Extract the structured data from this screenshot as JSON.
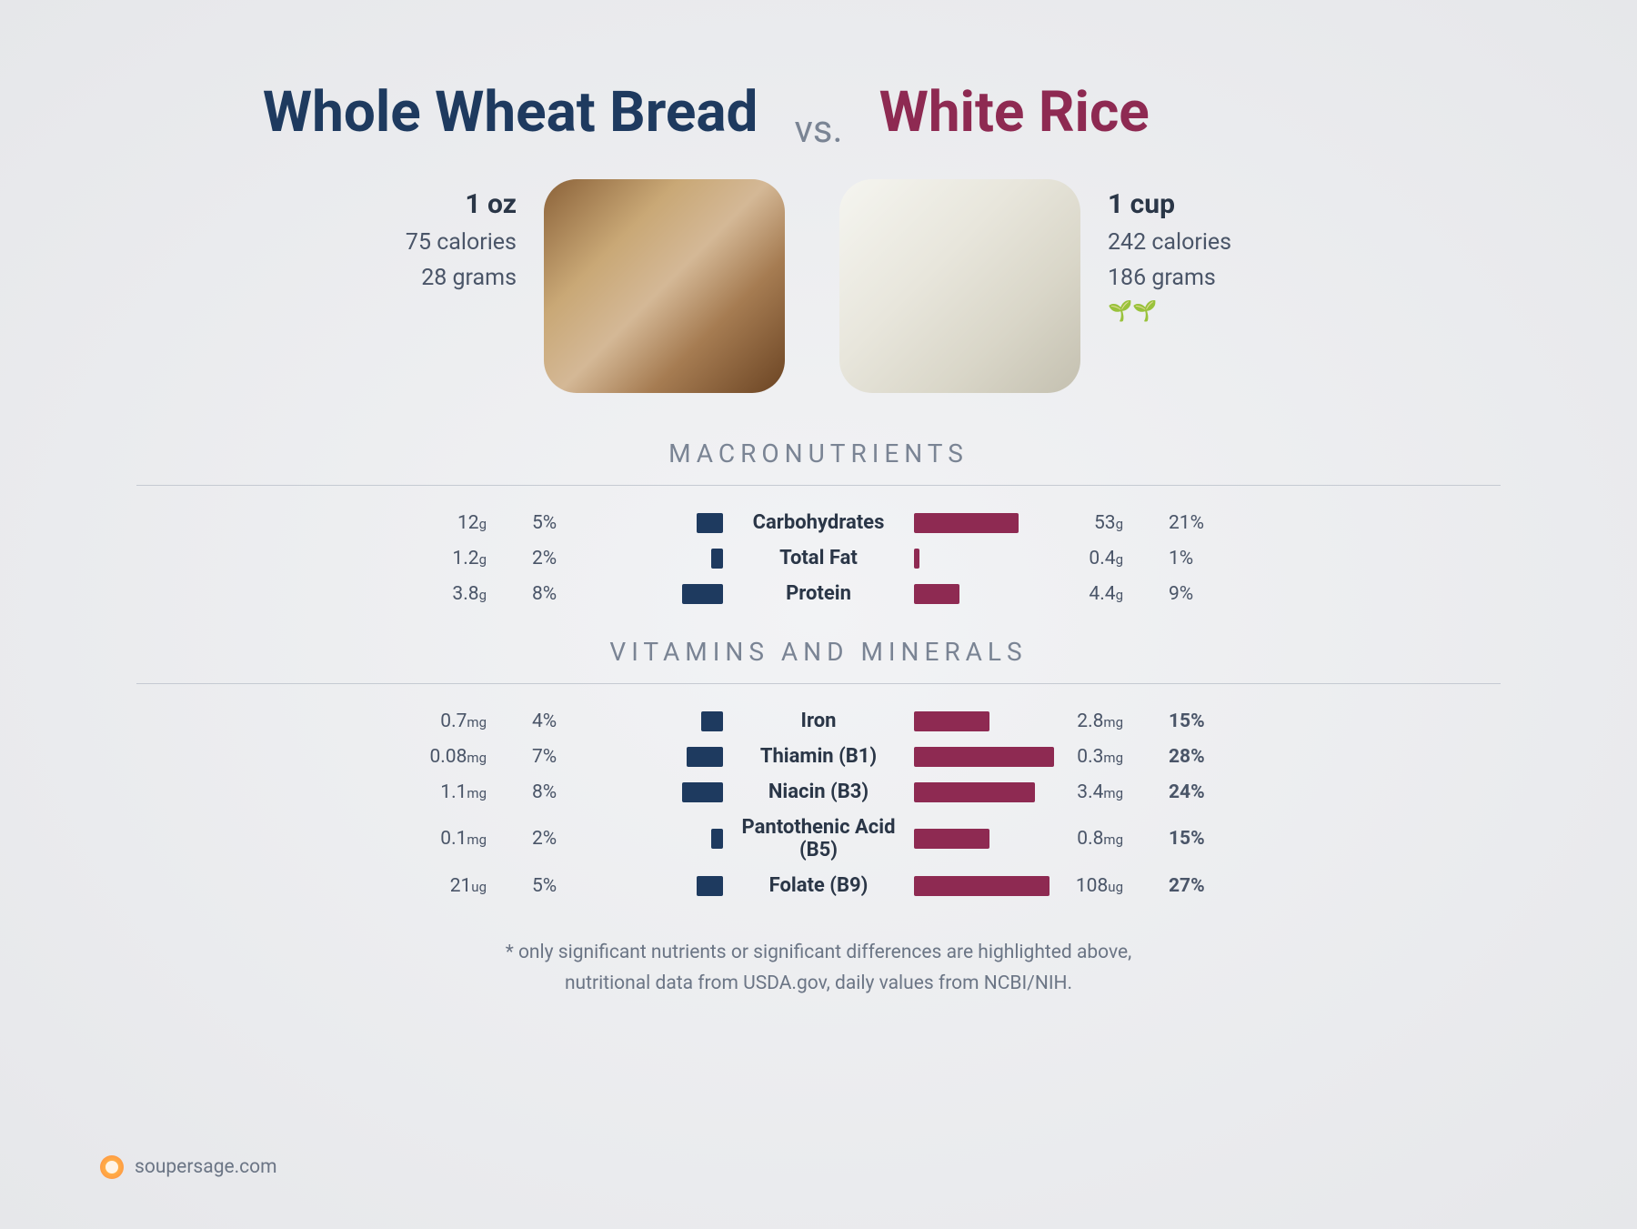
{
  "left": {
    "title": "Whole Wheat Bread",
    "color": "#1e3a5f",
    "serving": "1 oz",
    "calories": "75 calories",
    "grams": "28 grams",
    "leaves": ""
  },
  "right": {
    "title": "White Rice",
    "color": "#8e2a52",
    "serving": "1 cup",
    "calories": "242 calories",
    "grams": "186 grams",
    "leaves": "🌱🌱"
  },
  "vs": "vs.",
  "sections": {
    "macro": "MACRONUTRIENTS",
    "vit": "VITAMINS AND MINERALS"
  },
  "macros": [
    {
      "label": "Carbohydrates",
      "l_amt": "12",
      "l_unit": "g",
      "l_pct": "5%",
      "l_bar": 18,
      "r_bar": 72,
      "r_amt": "53",
      "r_unit": "g",
      "r_pct": "21%",
      "r_bold": false
    },
    {
      "label": "Total Fat",
      "l_amt": "1.2",
      "l_unit": "g",
      "l_pct": "2%",
      "l_bar": 8,
      "r_bar": 4,
      "r_amt": "0.4",
      "r_unit": "g",
      "r_pct": "1%",
      "r_bold": false
    },
    {
      "label": "Protein",
      "l_amt": "3.8",
      "l_unit": "g",
      "l_pct": "8%",
      "l_bar": 28,
      "r_bar": 31,
      "r_amt": "4.4",
      "r_unit": "g",
      "r_pct": "9%",
      "r_bold": false
    }
  ],
  "vitamins": [
    {
      "label": "Iron",
      "l_amt": "0.7",
      "l_unit": "mg",
      "l_pct": "4%",
      "l_bar": 15,
      "r_bar": 52,
      "r_amt": "2.8",
      "r_unit": "mg",
      "r_pct": "15%",
      "r_bold": true
    },
    {
      "label": "Thiamin (B1)",
      "l_amt": "0.08",
      "l_unit": "mg",
      "l_pct": "7%",
      "l_bar": 25,
      "r_bar": 96,
      "r_amt": "0.3",
      "r_unit": "mg",
      "r_pct": "28%",
      "r_bold": true
    },
    {
      "label": "Niacin (B3)",
      "l_amt": "1.1",
      "l_unit": "mg",
      "l_pct": "8%",
      "l_bar": 28,
      "r_bar": 83,
      "r_amt": "3.4",
      "r_unit": "mg",
      "r_pct": "24%",
      "r_bold": true
    },
    {
      "label": "Pantothenic Acid (B5)",
      "l_amt": "0.1",
      "l_unit": "mg",
      "l_pct": "2%",
      "l_bar": 8,
      "r_bar": 52,
      "r_amt": "0.8",
      "r_unit": "mg",
      "r_pct": "15%",
      "r_bold": true
    },
    {
      "label": "Folate (B9)",
      "l_amt": "21",
      "l_unit": "ug",
      "l_pct": "5%",
      "l_bar": 18,
      "r_bar": 93,
      "r_amt": "108",
      "r_unit": "ug",
      "r_pct": "27%",
      "r_bold": true
    }
  ],
  "footnote1": "* only significant nutrients or significant differences are highlighted above,",
  "footnote2": "nutritional data from USDA.gov, daily values from NCBI/NIH.",
  "brand": "soupersage.com",
  "bar_max_width": 160
}
